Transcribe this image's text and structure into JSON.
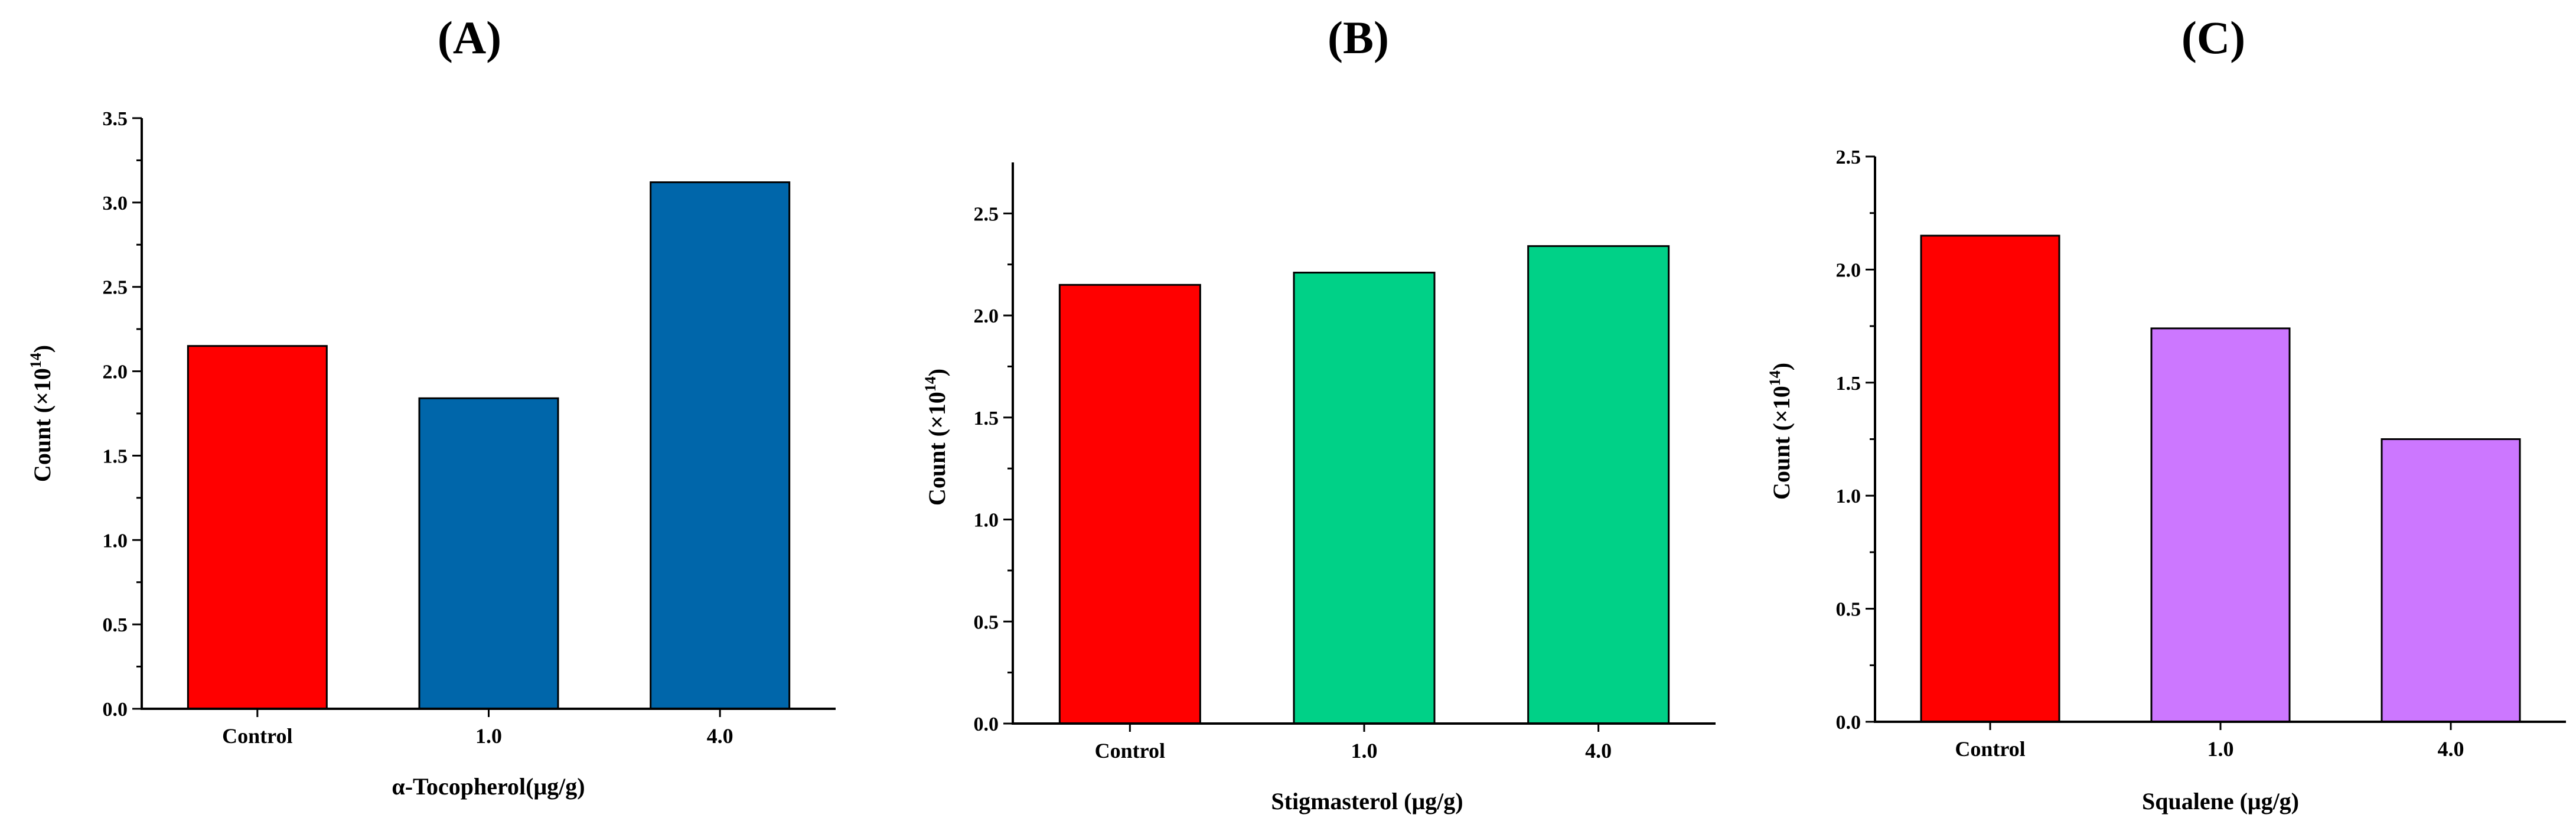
{
  "chart_data": [
    {
      "type": "bar",
      "panel_label": "(A)",
      "categories": [
        "Control",
        "1.0",
        "4.0"
      ],
      "values": [
        2.15,
        1.84,
        3.12
      ],
      "colors": [
        "#ff0000",
        "#0066aa",
        "#0066aa"
      ],
      "xlabel": "α-Tocopherol(μg/g)",
      "ylabel_prefix": "Count (×10",
      "ylabel_exp": "14",
      "ylabel_suffix": ")",
      "ylim": [
        0,
        3.5
      ],
      "yticks": [
        "0.0",
        "0.5",
        "1.0",
        "1.5",
        "2.0",
        "2.5",
        "3.0",
        "3.5"
      ],
      "grid": false
    },
    {
      "type": "bar",
      "panel_label": "(B)",
      "categories": [
        "Control",
        "1.0",
        "4.0"
      ],
      "values": [
        2.15,
        2.21,
        2.34
      ],
      "colors": [
        "#ff0000",
        "#00d187",
        "#00d187"
      ],
      "xlabel": "Stigmasterol (μg/g)",
      "ylabel_prefix": "Count (×10",
      "ylabel_exp": "14",
      "ylabel_suffix": ")",
      "ylim": [
        0,
        2.75
      ],
      "yticks": [
        "0.0",
        "0.5",
        "1.0",
        "1.5",
        "2.0",
        "2.5"
      ],
      "grid": false
    },
    {
      "type": "bar",
      "panel_label": "(C)",
      "categories": [
        "Control",
        "1.0",
        "4.0"
      ],
      "values": [
        2.15,
        1.74,
        1.25
      ],
      "colors": [
        "#ff0000",
        "#cc77ff",
        "#cc77ff"
      ],
      "xlabel": "Squalene (μg/g)",
      "ylabel_prefix": "Count (×10",
      "ylabel_exp": "14",
      "ylabel_suffix": ")",
      "ylim": [
        0,
        2.5
      ],
      "yticks": [
        "0.0",
        "0.5",
        "1.0",
        "1.5",
        "2.0",
        "2.5"
      ],
      "grid": false
    }
  ]
}
